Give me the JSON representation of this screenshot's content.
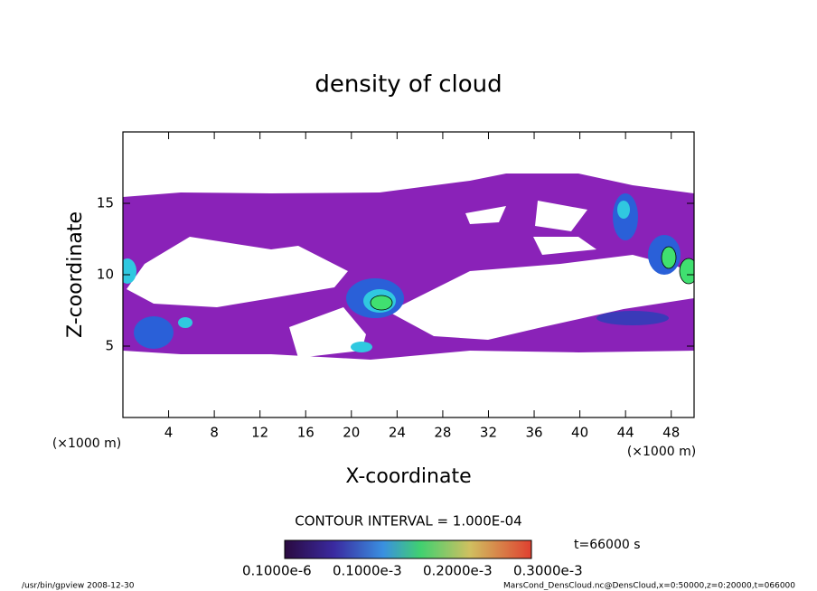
{
  "chart_data": {
    "type": "contour",
    "title": "density of cloud",
    "x_label": "X-coordinate",
    "y_label": "Z-coordinate",
    "x_unit": "(×1000 m)",
    "xlim": [
      0,
      50
    ],
    "xticks": [
      4,
      8,
      12,
      16,
      20,
      24,
      28,
      32,
      36,
      40,
      44,
      48
    ],
    "ylim": [
      0,
      20
    ],
    "yticks": [
      5,
      10,
      15
    ],
    "contour_interval": "CONTOUR INTERVAL = 1.000E-04",
    "time_label": "t=66000 s",
    "colorbar_labels": [
      "0.1000e-6",
      "0.1000e-3",
      "0.2000e-3",
      "0.3000e-3"
    ],
    "footer_left": "/usr/bin/gpview  2008-12-30",
    "footer_right": "MarsCond_DensCloud.nc@DensCloud,x=0:50000,z=0:20000,t=066000"
  }
}
